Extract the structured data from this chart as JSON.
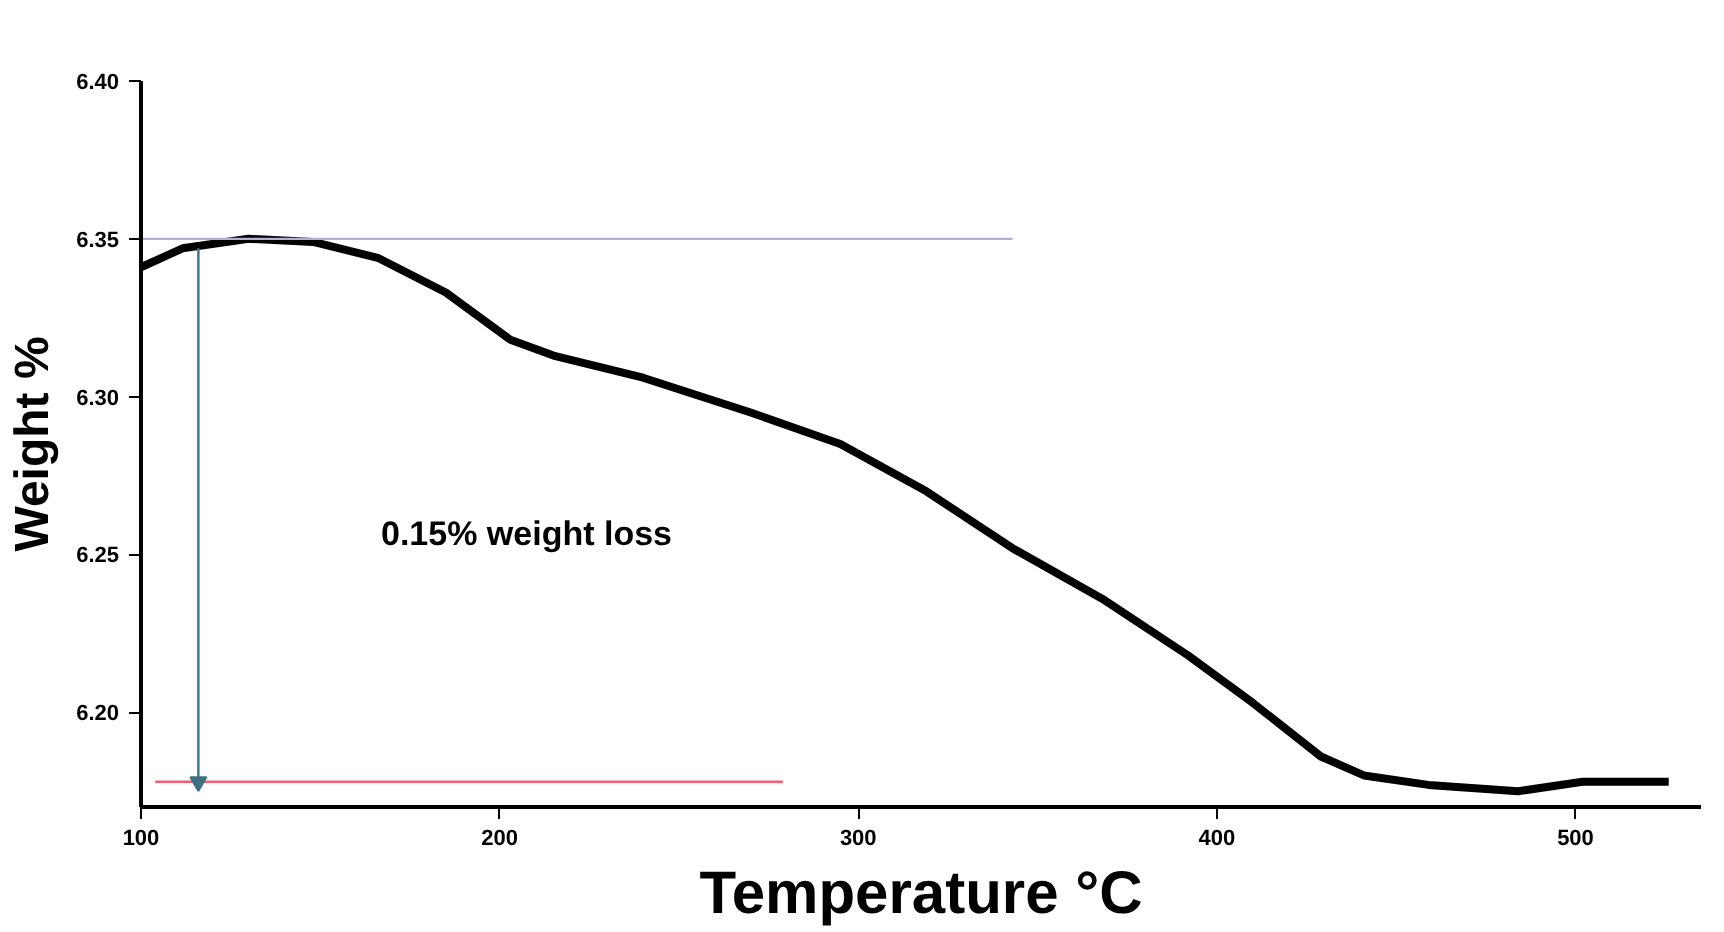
{
  "chart_data": {
    "type": "line",
    "xlabel": "Temperature °C",
    "ylabel": "Weight %",
    "xlim": [
      100,
      535
    ],
    "ylim": [
      6.17,
      6.4
    ],
    "xticks": [
      100,
      200,
      300,
      400,
      500
    ],
    "yticks": [
      {
        "value": 6.2,
        "label": "6.20"
      },
      6.25,
      {
        "value": 6.3,
        "label": "6.30"
      },
      6.35,
      {
        "value": 6.4,
        "label": "6.40"
      }
    ],
    "grid": false,
    "marker": "none",
    "line_style": "solid",
    "annotations": [
      "0.15% weight loss"
    ],
    "series": [
      {
        "color": "#000000",
        "x": [
          100,
          111.6,
          130,
          148,
          166,
          185,
          203,
          215,
          240,
          270,
          295,
          319,
          343,
          368,
          392,
          410,
          429,
          441,
          459,
          484,
          502,
          526
        ],
        "values": [
          6.341,
          6.347,
          6.35,
          6.349,
          6.344,
          6.333,
          6.318,
          6.313,
          6.306,
          6.295,
          6.285,
          6.27,
          6.252,
          6.236,
          6.218,
          6.203,
          6.186,
          6.18,
          6.177,
          6.175,
          6.178,
          6.178
        ]
      },
      {
        "color": "#b0b0e0",
        "x": [
          100,
          343
        ],
        "values": [
          6.35,
          6.35
        ]
      },
      {
        "color": "#f06070",
        "x": [
          104,
          279
        ],
        "values": [
          6.178,
          6.178
        ]
      },
      {
        "color": "#407080",
        "marker": "triangle",
        "x": [
          116,
          116
        ],
        "values": [
          6.347,
          6.178
        ]
      }
    ]
  }
}
